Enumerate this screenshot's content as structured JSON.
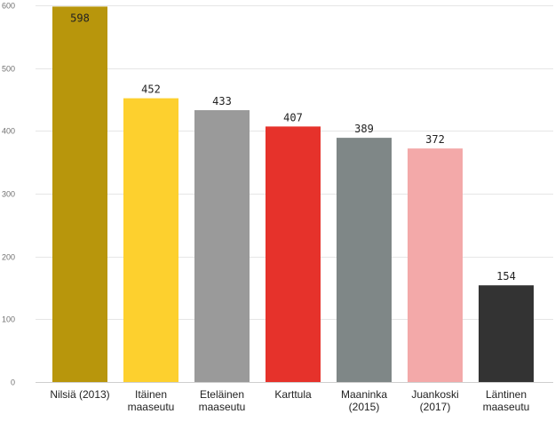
{
  "chart_data": {
    "type": "bar",
    "title": "",
    "xlabel": "",
    "ylabel": "",
    "ylim": [
      0,
      600
    ],
    "yticks": [
      0,
      100,
      200,
      300,
      400,
      500,
      600
    ],
    "grid": true,
    "legend": "none",
    "categories": [
      [
        "Nilsiä (2013)"
      ],
      [
        "Itäinen",
        "maaseutu"
      ],
      [
        "Eteläinen",
        "maaseutu"
      ],
      [
        "Karttula"
      ],
      [
        "Maaninka",
        "(2015)"
      ],
      [
        "Juankoski",
        "(2017)"
      ],
      [
        "Läntinen",
        "maaseutu"
      ]
    ],
    "values": [
      598,
      452,
      433,
      407,
      389,
      372,
      154
    ],
    "colors": [
      "#b8960c",
      "#fdd02e",
      "#9a9a9a",
      "#e6322b",
      "#7f8787",
      "#f3a9a9",
      "#333333"
    ]
  }
}
